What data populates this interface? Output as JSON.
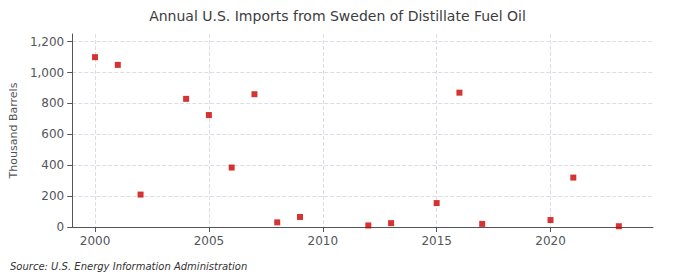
{
  "chart_data": {
    "type": "scatter",
    "title": "Annual U.S. Imports from Sweden of Distillate Fuel Oil",
    "ylabel": "Thousand Barrels",
    "annotations": [
      "Source: U.S. Energy Information Administration"
    ],
    "x": [
      2000,
      2001,
      2002,
      2004,
      2005,
      2006,
      2007,
      2008,
      2009,
      2012,
      2013,
      2015,
      2016,
      2017,
      2020,
      2021,
      2023
    ],
    "values": [
      1100,
      1050,
      210,
      830,
      725,
      385,
      860,
      30,
      65,
      10,
      25,
      155,
      870,
      20,
      45,
      320,
      5
    ],
    "color": "#cc0000",
    "marker": "square",
    "xlim": [
      1999,
      2024.5
    ],
    "ylim": [
      0,
      1250
    ],
    "xticks": [
      2000,
      2005,
      2010,
      2015,
      2020
    ],
    "yticks": [
      0,
      200,
      400,
      600,
      800,
      {
        "value": 1000,
        "label": "1,000"
      },
      {
        "value": 1200,
        "label": "1,200"
      }
    ],
    "grid": true
  }
}
